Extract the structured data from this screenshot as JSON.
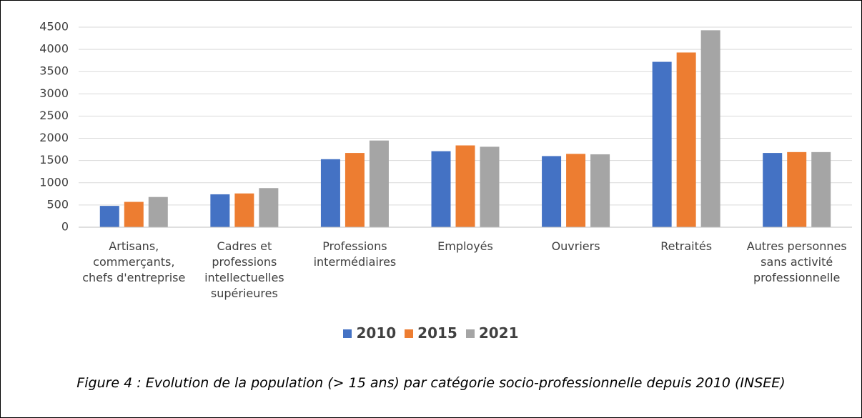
{
  "chart_data": {
    "type": "bar",
    "caption": "Figure 4 : Evolution de la population (> 15 ans) par catégorie socio-professionnelle depuis 2010 (INSEE)",
    "categories": [
      "Artisans, commerçants, chefs d'entreprise",
      "Cadres et professions intellectuelles supérieures",
      "Professions intermédiaires",
      "Employés",
      "Ouvriers",
      "Retraités",
      "Autres personnes sans activité professionnelle"
    ],
    "series": [
      {
        "name": "2010",
        "color": "#4472c4",
        "values": [
          480,
          740,
          1530,
          1710,
          1600,
          3720,
          1670
        ]
      },
      {
        "name": "2015",
        "color": "#ed7d31",
        "values": [
          570,
          760,
          1670,
          1840,
          1650,
          3930,
          1690
        ]
      },
      {
        "name": "2021",
        "color": "#a5a5a5",
        "values": [
          680,
          880,
          1950,
          1810,
          1640,
          4430,
          1690
        ]
      }
    ],
    "ylim": [
      0,
      4500
    ],
    "yticks": [
      0,
      500,
      1000,
      1500,
      2000,
      2500,
      3000,
      3500,
      4000,
      4500
    ],
    "grid": true,
    "legend": "bottom"
  }
}
